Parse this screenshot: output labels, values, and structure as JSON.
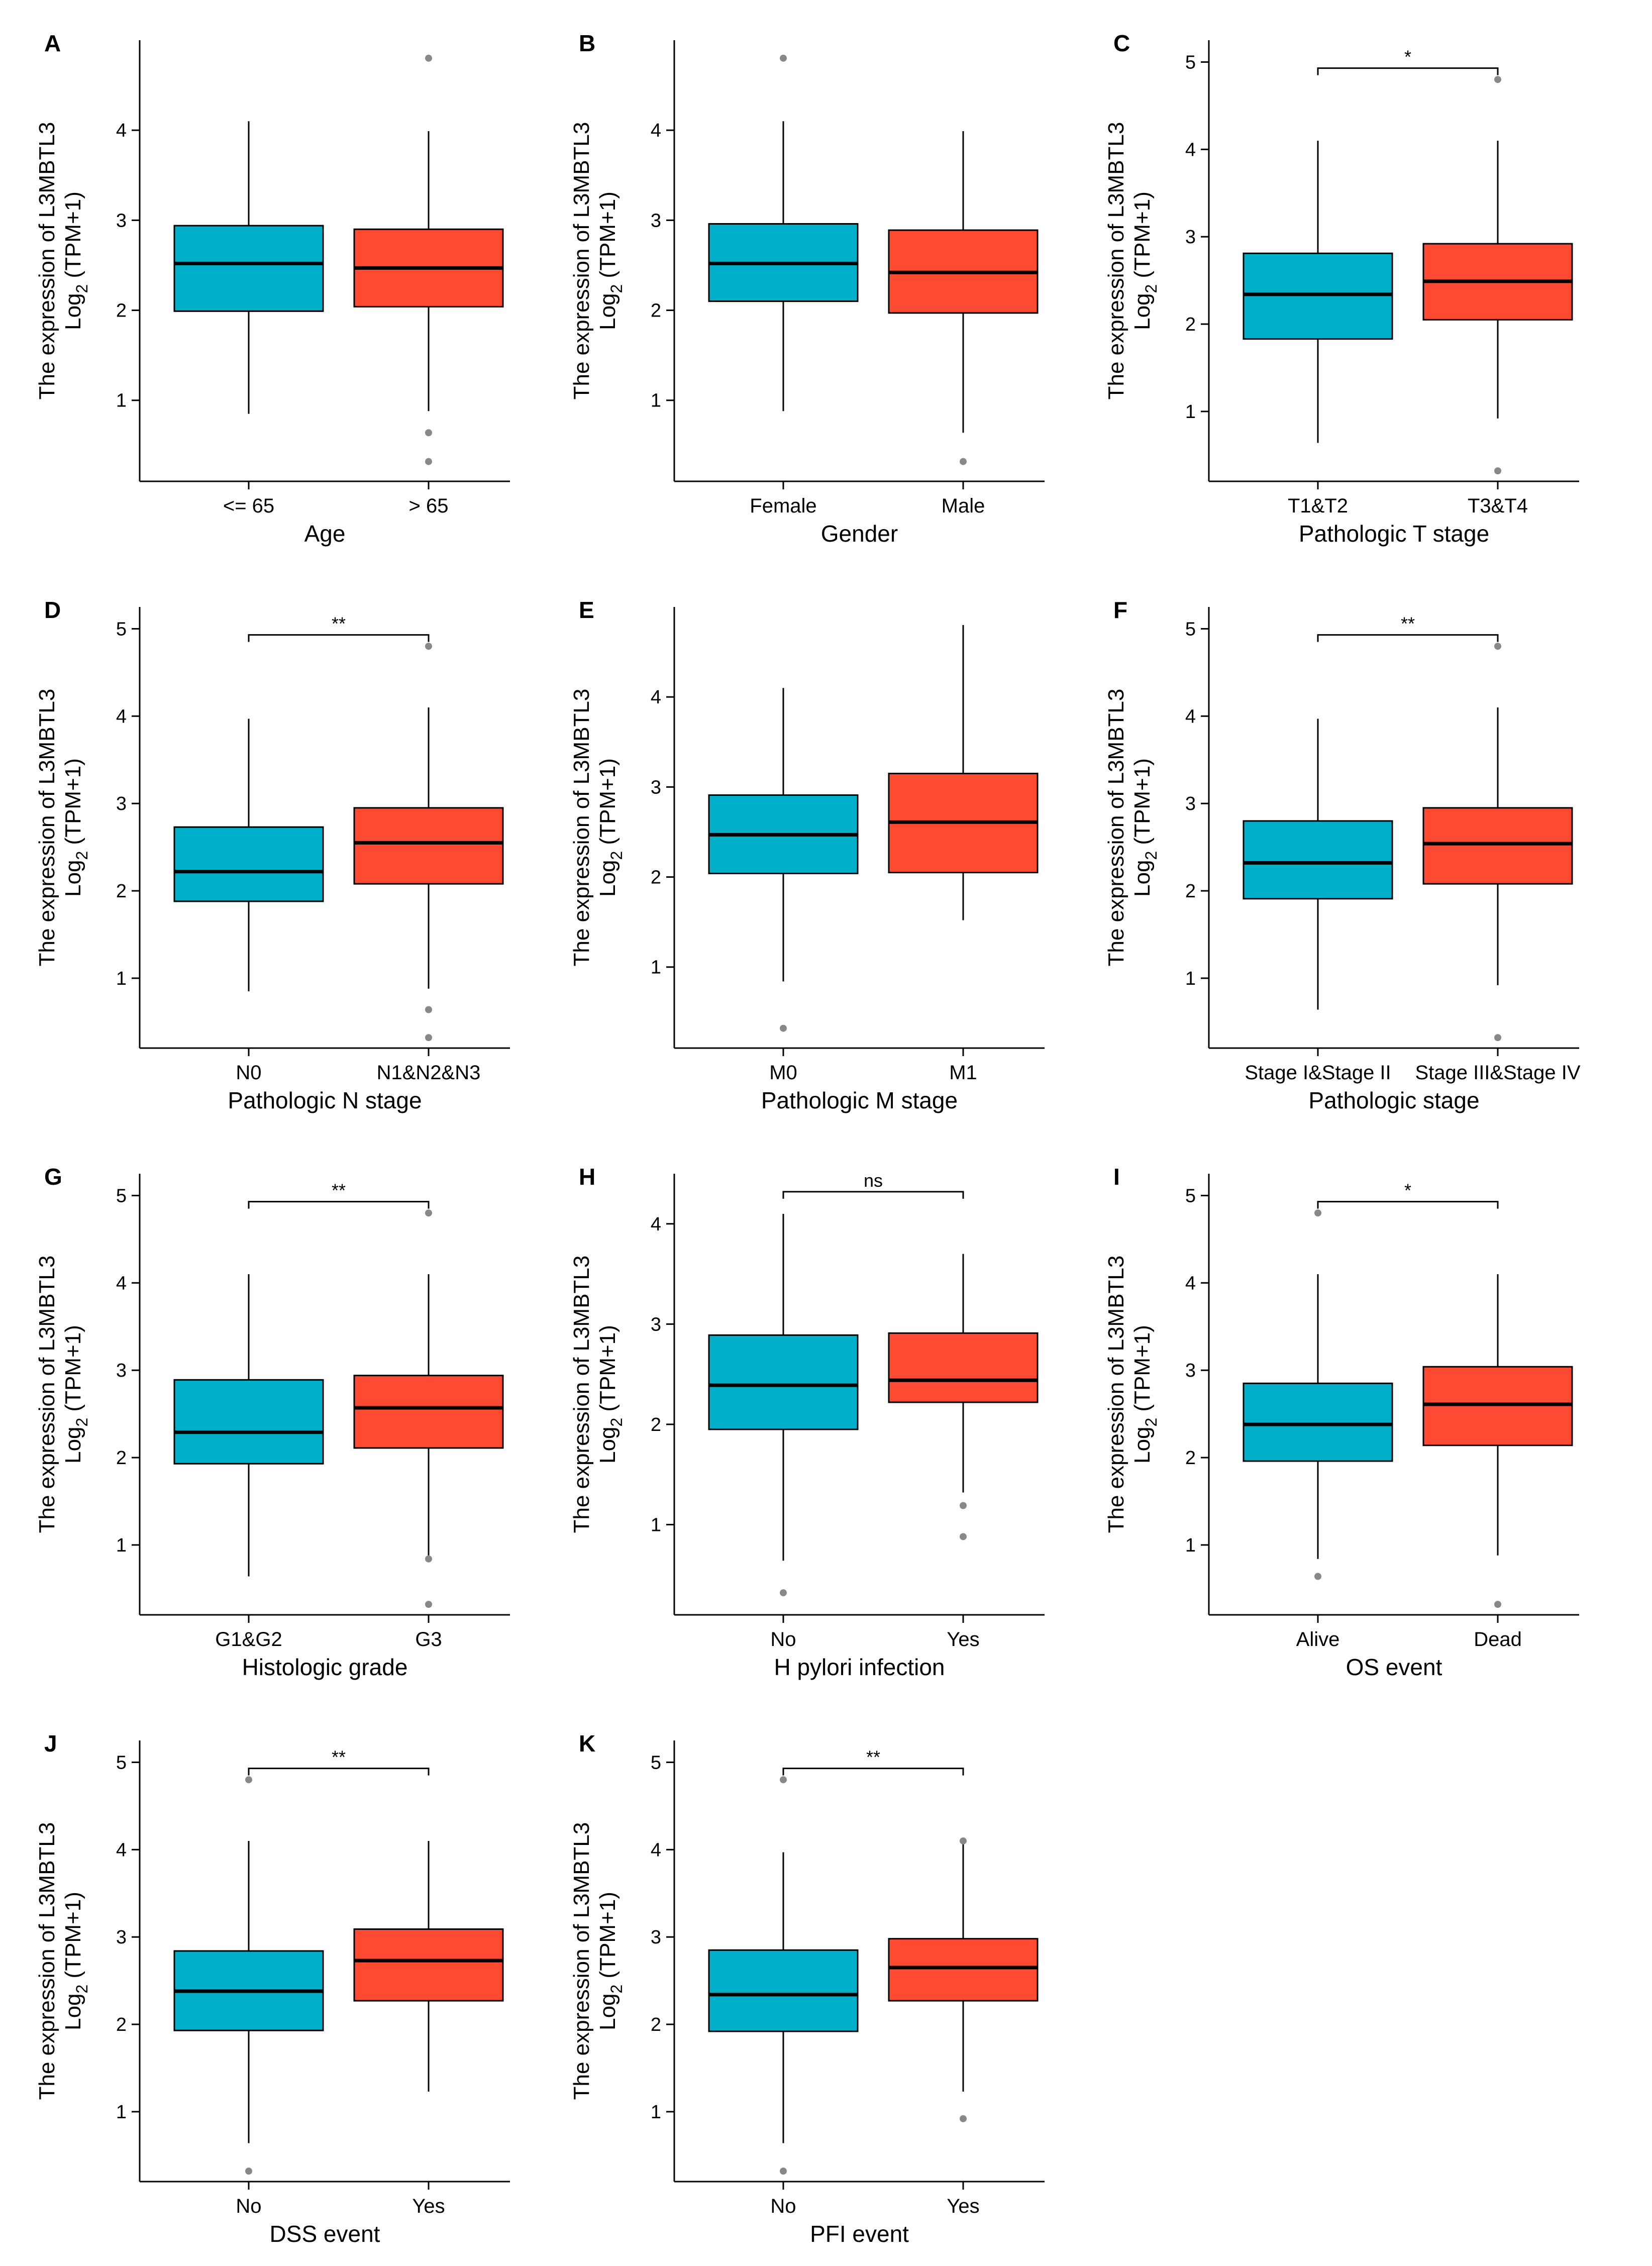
{
  "figure": {
    "ylabel_line1": "The expression of L3MBTL3",
    "ylabel_line2_main": "Log",
    "ylabel_line2_sub": "2",
    "ylabel_line2_rest": " (TPM+1)"
  },
  "colors": {
    "group1": "#00AFC9",
    "group2": "#FF4A33",
    "outlier": "#888888"
  },
  "chart_data": [
    {
      "type": "box",
      "letter": "A",
      "xlabel": "Age",
      "categories": [
        "<= 65",
        "> 65"
      ],
      "ylim": [
        0.1,
        5.0
      ],
      "yticks": [
        1,
        2,
        3,
        4
      ],
      "boxes": [
        {
          "whisker_low": 0.85,
          "q1": 1.99,
          "median": 2.52,
          "q3": 2.94,
          "whisker_high": 4.1,
          "outliers": []
        },
        {
          "whisker_low": 0.88,
          "q1": 2.04,
          "median": 2.47,
          "q3": 2.9,
          "whisker_high": 3.99,
          "outliers": [
            4.8,
            0.64,
            0.32
          ]
        }
      ],
      "significance": null
    },
    {
      "type": "box",
      "letter": "B",
      "xlabel": "Gender",
      "categories": [
        "Female",
        "Male"
      ],
      "ylim": [
        0.1,
        5.0
      ],
      "yticks": [
        1,
        2,
        3,
        4
      ],
      "boxes": [
        {
          "whisker_low": 0.88,
          "q1": 2.1,
          "median": 2.52,
          "q3": 2.96,
          "whisker_high": 4.1,
          "outliers": [
            4.8
          ]
        },
        {
          "whisker_low": 0.64,
          "q1": 1.97,
          "median": 2.42,
          "q3": 2.89,
          "whisker_high": 3.99,
          "outliers": [
            0.32
          ]
        }
      ],
      "significance": null
    },
    {
      "type": "box",
      "letter": "C",
      "xlabel": "Pathologic T stage",
      "categories": [
        "T1&T2",
        "T3&T4"
      ],
      "ylim": [
        0.2,
        5.25
      ],
      "yticks": [
        1,
        2,
        3,
        4,
        5
      ],
      "boxes": [
        {
          "whisker_low": 0.64,
          "q1": 1.83,
          "median": 2.34,
          "q3": 2.81,
          "whisker_high": 4.1,
          "outliers": []
        },
        {
          "whisker_low": 0.92,
          "q1": 2.05,
          "median": 2.49,
          "q3": 2.92,
          "whisker_high": 4.1,
          "outliers": [
            4.8,
            0.32
          ]
        }
      ],
      "significance": {
        "label": "*",
        "level": 4.93
      }
    },
    {
      "type": "box",
      "letter": "D",
      "xlabel": "Pathologic N stage",
      "categories": [
        "N0",
        "N1&N2&N3"
      ],
      "ylim": [
        0.2,
        5.25
      ],
      "yticks": [
        1,
        2,
        3,
        4,
        5
      ],
      "boxes": [
        {
          "whisker_low": 0.85,
          "q1": 1.88,
          "median": 2.22,
          "q3": 2.73,
          "whisker_high": 3.97,
          "outliers": []
        },
        {
          "whisker_low": 0.88,
          "q1": 2.08,
          "median": 2.55,
          "q3": 2.95,
          "whisker_high": 4.1,
          "outliers": [
            4.8,
            0.64,
            0.32
          ]
        }
      ],
      "significance": {
        "label": "**",
        "level": 4.93
      }
    },
    {
      "type": "box",
      "letter": "E",
      "xlabel": "Pathologic M stage",
      "categories": [
        "M0",
        "M1"
      ],
      "ylim": [
        0.1,
        5.0
      ],
      "yticks": [
        1,
        2,
        3,
        4
      ],
      "boxes": [
        {
          "whisker_low": 0.84,
          "q1": 2.04,
          "median": 2.47,
          "q3": 2.91,
          "whisker_high": 4.1,
          "outliers": [
            0.32
          ]
        },
        {
          "whisker_low": 1.52,
          "q1": 2.05,
          "median": 2.61,
          "q3": 3.15,
          "whisker_high": 4.8,
          "outliers": []
        }
      ],
      "significance": null
    },
    {
      "type": "box",
      "letter": "F",
      "xlabel": "Pathologic stage",
      "categories": [
        "Stage I&Stage II",
        "Stage III&Stage IV"
      ],
      "ylim": [
        0.2,
        5.25
      ],
      "yticks": [
        1,
        2,
        3,
        4,
        5
      ],
      "boxes": [
        {
          "whisker_low": 0.64,
          "q1": 1.91,
          "median": 2.32,
          "q3": 2.8,
          "whisker_high": 3.97,
          "outliers": []
        },
        {
          "whisker_low": 0.92,
          "q1": 2.08,
          "median": 2.54,
          "q3": 2.95,
          "whisker_high": 4.1,
          "outliers": [
            4.8,
            0.32
          ]
        }
      ],
      "significance": {
        "label": "**",
        "level": 4.93
      }
    },
    {
      "type": "box",
      "letter": "G",
      "xlabel": "Histologic grade",
      "categories": [
        "G1&G2",
        "G3"
      ],
      "ylim": [
        0.2,
        5.25
      ],
      "yticks": [
        1,
        2,
        3,
        4,
        5
      ],
      "boxes": [
        {
          "whisker_low": 0.64,
          "q1": 1.93,
          "median": 2.29,
          "q3": 2.89,
          "whisker_high": 4.1,
          "outliers": []
        },
        {
          "whisker_low": 0.88,
          "q1": 2.11,
          "median": 2.57,
          "q3": 2.94,
          "whisker_high": 4.1,
          "outliers": [
            4.8,
            0.84,
            0.32
          ]
        }
      ],
      "significance": {
        "label": "**",
        "level": 4.93
      }
    },
    {
      "type": "box",
      "letter": "H",
      "xlabel": "H pylori infection",
      "categories": [
        "No",
        "Yes"
      ],
      "ylim": [
        0.1,
        4.5
      ],
      "yticks": [
        1,
        2,
        3,
        4
      ],
      "boxes": [
        {
          "whisker_low": 0.64,
          "q1": 1.95,
          "median": 2.39,
          "q3": 2.89,
          "whisker_high": 4.1,
          "outliers": [
            0.32
          ]
        },
        {
          "whisker_low": 1.32,
          "q1": 2.22,
          "median": 2.44,
          "q3": 2.91,
          "whisker_high": 3.7,
          "outliers": [
            1.19,
            0.88
          ]
        }
      ],
      "significance": {
        "label": "ns",
        "level": 4.32
      }
    },
    {
      "type": "box",
      "letter": "I",
      "xlabel": "OS event",
      "categories": [
        "Alive",
        "Dead"
      ],
      "ylim": [
        0.2,
        5.25
      ],
      "yticks": [
        1,
        2,
        3,
        4,
        5
      ],
      "boxes": [
        {
          "whisker_low": 0.84,
          "q1": 1.96,
          "median": 2.38,
          "q3": 2.85,
          "whisker_high": 4.1,
          "outliers": [
            4.8,
            0.64
          ]
        },
        {
          "whisker_low": 0.88,
          "q1": 2.14,
          "median": 2.61,
          "q3": 3.04,
          "whisker_high": 4.1,
          "outliers": [
            0.32
          ]
        }
      ],
      "significance": {
        "label": "*",
        "level": 4.93
      }
    },
    {
      "type": "box",
      "letter": "J",
      "xlabel": "DSS event",
      "categories": [
        "No",
        "Yes"
      ],
      "ylim": [
        0.2,
        5.25
      ],
      "yticks": [
        1,
        2,
        3,
        4,
        5
      ],
      "boxes": [
        {
          "whisker_low": 0.64,
          "q1": 1.93,
          "median": 2.38,
          "q3": 2.84,
          "whisker_high": 4.1,
          "outliers": [
            4.8,
            0.32
          ]
        },
        {
          "whisker_low": 1.23,
          "q1": 2.27,
          "median": 2.73,
          "q3": 3.09,
          "whisker_high": 4.1,
          "outliers": []
        }
      ],
      "significance": {
        "label": "**",
        "level": 4.93
      }
    },
    {
      "type": "box",
      "letter": "K",
      "xlabel": "PFI event",
      "categories": [
        "No",
        "Yes"
      ],
      "ylim": [
        0.2,
        5.25
      ],
      "yticks": [
        1,
        2,
        3,
        4,
        5
      ],
      "boxes": [
        {
          "whisker_low": 0.64,
          "q1": 1.92,
          "median": 2.34,
          "q3": 2.85,
          "whisker_high": 3.97,
          "outliers": [
            4.8,
            0.32
          ]
        },
        {
          "whisker_low": 1.23,
          "q1": 2.27,
          "median": 2.65,
          "q3": 2.98,
          "whisker_high": 4.1,
          "outliers": [
            4.1,
            0.92
          ]
        }
      ],
      "significance": {
        "label": "**",
        "level": 4.93
      }
    }
  ]
}
